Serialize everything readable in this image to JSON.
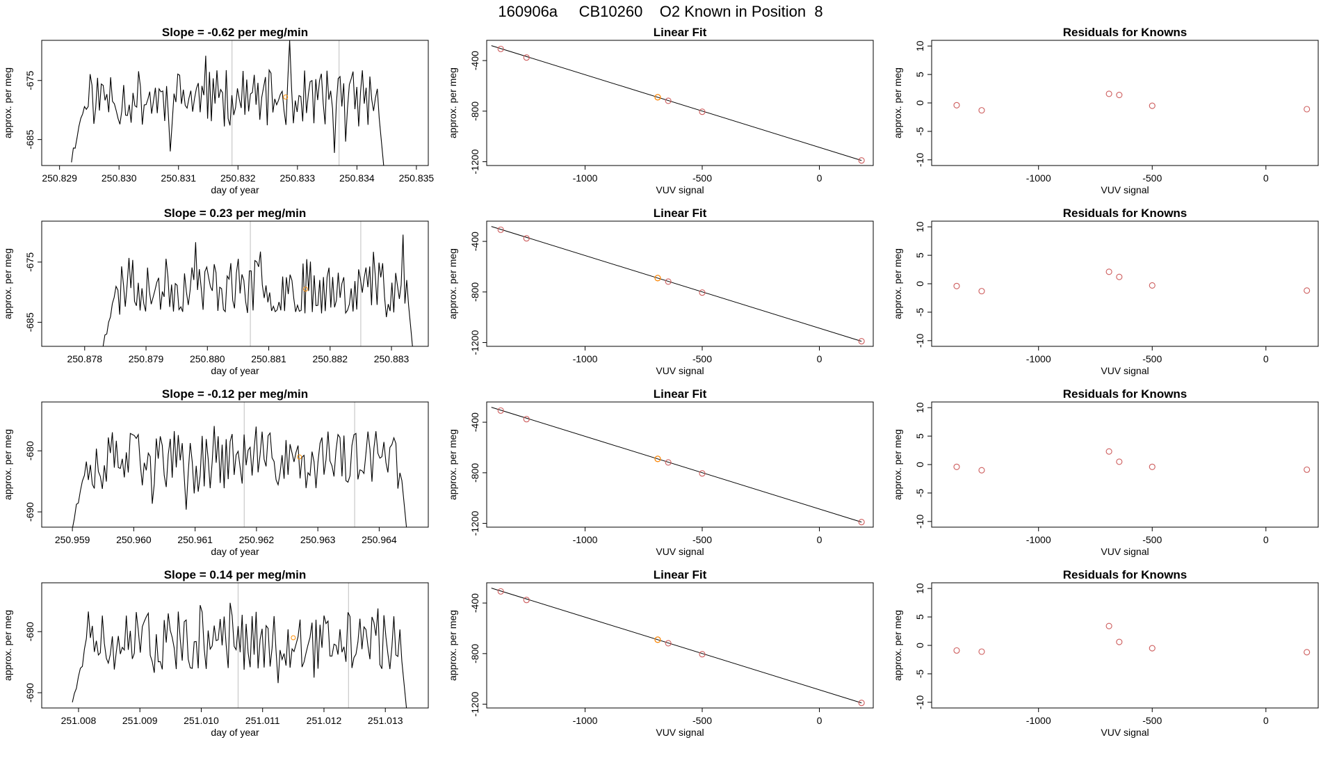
{
  "figure": {
    "title": "160906a     CB10260    O2 Known in Position  8"
  },
  "colors": {
    "trace": "#000000",
    "gridline": "#bebebe",
    "known_point": "#cd5c5c",
    "highlight_point": "#ff8c00",
    "fit_line": "#000000"
  },
  "chart_data": [
    {
      "type": "line",
      "row": 1,
      "panel": "timeseries",
      "title": "Slope =  -0.62  per meg/min",
      "xlabel": "day of year",
      "ylabel": "approx. per meg",
      "xlim": [
        250.8287,
        250.8352
      ],
      "ylim": [
        -689.4,
        -668.2
      ],
      "xticks": [
        250.829,
        250.83,
        250.831,
        250.832,
        250.833,
        250.834,
        250.835
      ],
      "xtick_labels": [
        "250.829",
        "250.830",
        "250.831",
        "250.832",
        "250.833",
        "250.834",
        "250.835"
      ],
      "yticks": [
        -675,
        -685
      ],
      "ytick_labels": [
        "-675",
        "-685"
      ],
      "trace": {
        "x_start": 250.8292,
        "x_end": 250.8345,
        "y_mean": -678.0,
        "y_amp": 4.8,
        "seed": 11
      },
      "vlines": [
        250.8319,
        250.8337
      ],
      "highlight": {
        "x": 250.8328,
        "y": -677.8
      }
    },
    {
      "type": "scatter",
      "row": 1,
      "panel": "linear_fit",
      "title": "Linear Fit",
      "xlabel": "VUV signal",
      "ylabel": "approx. per meg",
      "xlim": [
        -1420,
        230
      ],
      "ylim": [
        -1230,
        -240
      ],
      "xticks": [
        -1000,
        -500,
        0
      ],
      "xtick_labels": [
        "-1000",
        "-500",
        "0"
      ],
      "yticks": [
        -400,
        -800,
        -1200
      ],
      "ytick_labels": [
        "-400",
        "-800",
        "-1200"
      ],
      "points": {
        "x": [
          -1360,
          -1250,
          -690,
          -645,
          -500,
          180
        ],
        "y": [
          -308,
          -376,
          -690,
          -718,
          -805,
          -1190
        ]
      },
      "highlight_point": {
        "x": -690,
        "y": -690
      },
      "fit": {
        "x": [
          -1400,
          180
        ],
        "y": [
          -282,
          -1190
        ]
      }
    },
    {
      "type": "scatter",
      "row": 1,
      "panel": "residuals",
      "title": "Residuals for Knowns",
      "xlabel": "VUV signal",
      "ylabel": "approx. per meg",
      "xlim": [
        -1470,
        230
      ],
      "ylim": [
        -11,
        11
      ],
      "xticks": [
        -1000,
        -500,
        0
      ],
      "xtick_labels": [
        "-1000",
        "-500",
        "0"
      ],
      "yticks": [
        10,
        5,
        0,
        -5,
        -10
      ],
      "ytick_labels": [
        "10",
        "5",
        "0",
        "-5",
        "-10"
      ],
      "points": {
        "x": [
          -1360,
          -1250,
          -690,
          -645,
          -500,
          180
        ],
        "y": [
          -0.4,
          -1.3,
          1.6,
          1.4,
          -0.5,
          -1.1
        ]
      }
    },
    {
      "type": "line",
      "row": 2,
      "panel": "timeseries",
      "title": "Slope =  0.23  per meg/min",
      "xlabel": "day of year",
      "ylabel": "approx. per meg",
      "xlim": [
        250.8773,
        250.8836
      ],
      "ylim": [
        -689.0,
        -668.2
      ],
      "xticks": [
        250.878,
        250.879,
        250.88,
        250.881,
        250.882,
        250.883
      ],
      "xtick_labels": [
        "250.878",
        "250.879",
        "250.880",
        "250.881",
        "250.882",
        "250.883"
      ],
      "yticks": [
        -675,
        -685
      ],
      "ytick_labels": [
        "-675",
        "-685"
      ],
      "trace": {
        "x_start": 250.8783,
        "x_end": 250.8834,
        "y_mean": -679.0,
        "y_amp": 4.6,
        "seed": 23
      },
      "vlines": [
        250.8807,
        250.8825
      ],
      "highlight": {
        "x": 250.8816,
        "y": -679.5
      }
    },
    {
      "type": "scatter",
      "row": 2,
      "panel": "linear_fit",
      "title": "Linear Fit",
      "xlabel": "VUV signal",
      "ylabel": "approx. per meg",
      "xlim": [
        -1420,
        230
      ],
      "ylim": [
        -1230,
        -240
      ],
      "xticks": [
        -1000,
        -500,
        0
      ],
      "xtick_labels": [
        "-1000",
        "-500",
        "0"
      ],
      "yticks": [
        -400,
        -800,
        -1200
      ],
      "ytick_labels": [
        "-400",
        "-800",
        "-1200"
      ],
      "points": {
        "x": [
          -1360,
          -1250,
          -690,
          -645,
          -500,
          180
        ],
        "y": [
          -308,
          -376,
          -690,
          -718,
          -805,
          -1190
        ]
      },
      "highlight_point": {
        "x": -690,
        "y": -690
      },
      "fit": {
        "x": [
          -1400,
          180
        ],
        "y": [
          -282,
          -1190
        ]
      }
    },
    {
      "type": "scatter",
      "row": 2,
      "panel": "residuals",
      "title": "Residuals for Knowns",
      "xlabel": "VUV signal",
      "ylabel": "approx. per meg",
      "xlim": [
        -1470,
        230
      ],
      "ylim": [
        -11,
        11
      ],
      "xticks": [
        -1000,
        -500,
        0
      ],
      "xtick_labels": [
        "-1000",
        "-500",
        "0"
      ],
      "yticks": [
        10,
        5,
        0,
        -5,
        -10
      ],
      "ytick_labels": [
        "10",
        "5",
        "0",
        "-5",
        "-10"
      ],
      "points": {
        "x": [
          -1360,
          -1250,
          -690,
          -645,
          -500,
          180
        ],
        "y": [
          -0.4,
          -1.3,
          2.1,
          1.2,
          -0.3,
          -1.2
        ]
      }
    },
    {
      "type": "line",
      "row": 3,
      "panel": "timeseries",
      "title": "Slope =  -0.12  per meg/min",
      "xlabel": "day of year",
      "ylabel": "approx. per meg",
      "xlim": [
        250.9585,
        250.9648
      ],
      "ylim": [
        -692.5,
        -672.0
      ],
      "xticks": [
        250.959,
        250.96,
        250.961,
        250.962,
        250.963,
        250.964
      ],
      "xtick_labels": [
        "250.959",
        "250.960",
        "250.961",
        "250.962",
        "250.963",
        "250.964"
      ],
      "yticks": [
        -680,
        -690
      ],
      "ytick_labels": [
        "-680",
        "-690"
      ],
      "trace": {
        "x_start": 250.959,
        "x_end": 250.9645,
        "y_mean": -681.5,
        "y_amp": 4.8,
        "seed": 37
      },
      "vlines": [
        250.9618,
        250.9636
      ],
      "highlight": {
        "x": 250.9627,
        "y": -681.0
      }
    },
    {
      "type": "scatter",
      "row": 3,
      "panel": "linear_fit",
      "title": "Linear Fit",
      "xlabel": "VUV signal",
      "ylabel": "approx. per meg",
      "xlim": [
        -1420,
        230
      ],
      "ylim": [
        -1230,
        -240
      ],
      "xticks": [
        -1000,
        -500,
        0
      ],
      "xtick_labels": [
        "-1000",
        "-500",
        "0"
      ],
      "yticks": [
        -400,
        -800,
        -1200
      ],
      "ytick_labels": [
        "-400",
        "-800",
        "-1200"
      ],
      "points": {
        "x": [
          -1360,
          -1250,
          -690,
          -645,
          -500,
          180
        ],
        "y": [
          -308,
          -376,
          -690,
          -718,
          -805,
          -1190
        ]
      },
      "highlight_point": {
        "x": -690,
        "y": -690
      },
      "fit": {
        "x": [
          -1400,
          180
        ],
        "y": [
          -282,
          -1190
        ]
      }
    },
    {
      "type": "scatter",
      "row": 3,
      "panel": "residuals",
      "title": "Residuals for Knowns",
      "xlabel": "VUV signal",
      "ylabel": "approx. per meg",
      "xlim": [
        -1470,
        230
      ],
      "ylim": [
        -11,
        11
      ],
      "xticks": [
        -1000,
        -500,
        0
      ],
      "xtick_labels": [
        "-1000",
        "-500",
        "0"
      ],
      "yticks": [
        10,
        5,
        0,
        -5,
        -10
      ],
      "ytick_labels": [
        "10",
        "5",
        "0",
        "-5",
        "-10"
      ],
      "points": {
        "x": [
          -1360,
          -1250,
          -690,
          -645,
          -500,
          180
        ],
        "y": [
          -0.4,
          -1.0,
          2.3,
          0.5,
          -0.4,
          -0.9
        ]
      }
    },
    {
      "type": "line",
      "row": 4,
      "panel": "timeseries",
      "title": "Slope =  0.14  per meg/min",
      "xlabel": "day of year",
      "ylabel": "approx. per meg",
      "xlim": [
        251.0074,
        251.0137
      ],
      "ylim": [
        -692.5,
        -672.0
      ],
      "xticks": [
        251.008,
        251.009,
        251.01,
        251.011,
        251.012,
        251.013
      ],
      "xtick_labels": [
        "251.008",
        "251.009",
        "251.010",
        "251.011",
        "251.012",
        "251.013"
      ],
      "yticks": [
        -680,
        -690
      ],
      "ytick_labels": [
        "-680",
        "-690"
      ],
      "trace": {
        "x_start": 251.0079,
        "x_end": 251.0134,
        "y_mean": -681.5,
        "y_amp": 4.8,
        "seed": 51
      },
      "vlines": [
        251.0106,
        251.0124
      ],
      "highlight": {
        "x": 251.0115,
        "y": -681.0
      }
    },
    {
      "type": "scatter",
      "row": 4,
      "panel": "linear_fit",
      "title": "Linear Fit",
      "xlabel": "VUV signal",
      "ylabel": "approx. per meg",
      "xlim": [
        -1420,
        230
      ],
      "ylim": [
        -1230,
        -240
      ],
      "xticks": [
        -1000,
        -500,
        0
      ],
      "xtick_labels": [
        "-1000",
        "-500",
        "0"
      ],
      "yticks": [
        -400,
        -800,
        -1200
      ],
      "ytick_labels": [
        "-400",
        "-800",
        "-1200"
      ],
      "points": {
        "x": [
          -1360,
          -1250,
          -690,
          -645,
          -500,
          180
        ],
        "y": [
          -308,
          -376,
          -690,
          -718,
          -805,
          -1190
        ]
      },
      "highlight_point": {
        "x": -690,
        "y": -690
      },
      "fit": {
        "x": [
          -1400,
          180
        ],
        "y": [
          -282,
          -1190
        ]
      }
    },
    {
      "type": "scatter",
      "row": 4,
      "panel": "residuals",
      "title": "Residuals for Knowns",
      "xlabel": "VUV signal",
      "ylabel": "approx. per meg",
      "xlim": [
        -1470,
        230
      ],
      "ylim": [
        -11,
        11
      ],
      "xticks": [
        -1000,
        -500,
        0
      ],
      "xtick_labels": [
        "-1000",
        "-500",
        "0"
      ],
      "yticks": [
        10,
        5,
        0,
        -5,
        -10
      ],
      "ytick_labels": [
        "10",
        "5",
        "0",
        "-5",
        "-10"
      ],
      "points": {
        "x": [
          -1360,
          -1250,
          -690,
          -645,
          -500,
          180
        ],
        "y": [
          -0.9,
          -1.1,
          3.4,
          0.6,
          -0.5,
          -1.2
        ]
      }
    }
  ]
}
